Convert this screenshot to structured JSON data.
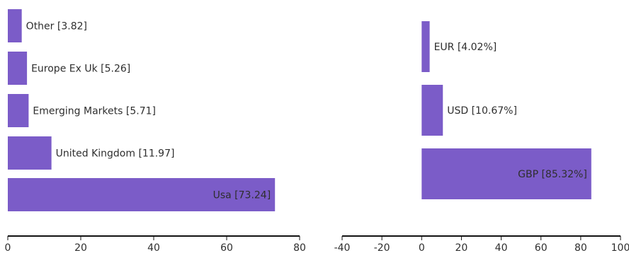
{
  "colors": {
    "bar": "#7b5cc8",
    "axis": "#111111",
    "text": "#2e2e2e"
  },
  "chart_data": [
    {
      "type": "bar",
      "orientation": "horizontal",
      "categories": [
        "Usa",
        "United Kingdom",
        "Emerging Markets",
        "Europe Ex Uk",
        "Other"
      ],
      "values": [
        73.24,
        11.97,
        5.71,
        5.26,
        3.82
      ],
      "labels": [
        "Usa [73.24]",
        "United Kingdom [11.97]",
        "Emerging Markets [5.71]",
        "Europe Ex Uk [5.26]",
        "Other [3.82]"
      ],
      "xlim": [
        0,
        80
      ],
      "xticks": [
        0,
        20,
        40,
        60,
        80
      ],
      "tick_labels": [
        "0",
        "20",
        "40",
        "60",
        "80"
      ],
      "grid": false,
      "legend": "none"
    },
    {
      "type": "bar",
      "orientation": "horizontal",
      "categories": [
        "GBP",
        "USD",
        "EUR"
      ],
      "values": [
        85.32,
        10.67,
        4.02
      ],
      "labels": [
        "GBP [85.32%]",
        "USD [10.67%]",
        "EUR [4.02%]"
      ],
      "xlim": [
        -40,
        100
      ],
      "xticks": [
        -40,
        -20,
        0,
        20,
        40,
        60,
        80,
        100
      ],
      "tick_labels": [
        "-40",
        "-20",
        "0",
        "20",
        "40",
        "60",
        "80",
        "100"
      ],
      "grid": false,
      "legend": "none"
    }
  ]
}
